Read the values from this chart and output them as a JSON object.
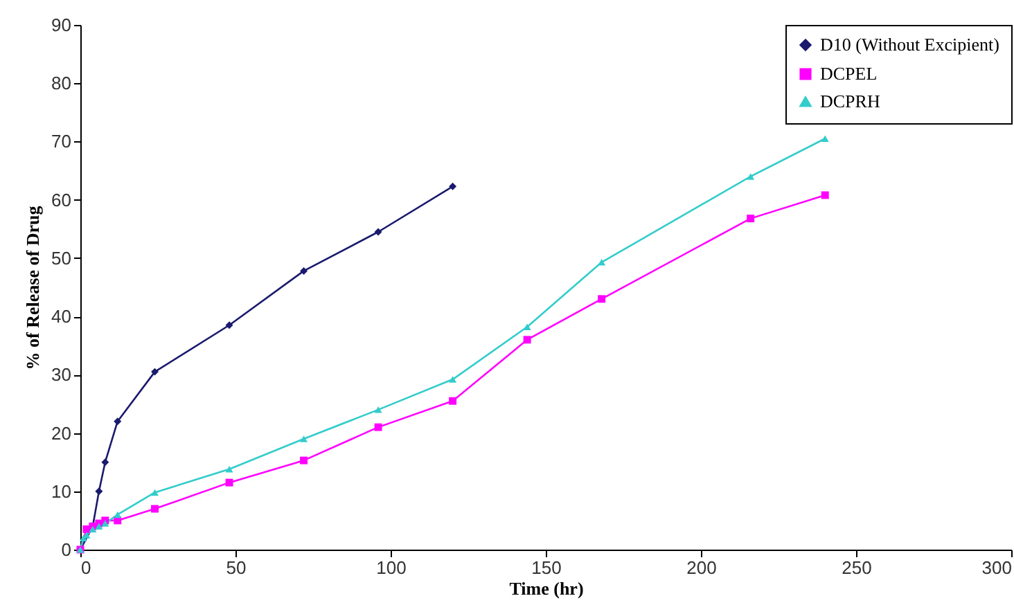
{
  "chart_data": {
    "type": "line",
    "xlabel": "Time (hr)",
    "ylabel": "% of Release of Drug",
    "xlim": [
      0,
      300
    ],
    "xticks": [
      0,
      50,
      100,
      150,
      200,
      250,
      300
    ],
    "ylim": [
      0,
      90
    ],
    "yticks": [
      0,
      10,
      20,
      30,
      40,
      50,
      60,
      70,
      80,
      90
    ],
    "grid": false,
    "legend": "top right",
    "series": [
      {
        "name": "D10 (Without Excipient)",
        "color": "#1a1a6e",
        "marker": "diamond",
        "x": [
          0,
          4,
          6,
          8,
          12,
          24,
          48,
          72,
          96,
          120
        ],
        "values": [
          0,
          4,
          10,
          15,
          22,
          30.5,
          38.5,
          47.8,
          54.5,
          62.3
        ]
      },
      {
        "name": "DCPEL",
        "color": "#ff00ff",
        "marker": "square",
        "x": [
          0,
          2,
          4,
          6,
          8,
          12,
          24,
          48,
          72,
          96,
          120,
          144,
          168,
          216,
          240
        ],
        "values": [
          0,
          3.5,
          4,
          4.5,
          5,
          5,
          7,
          11.5,
          15.3,
          21,
          25.5,
          36,
          43,
          56.8,
          60.8
        ]
      },
      {
        "name": "DCPRH",
        "color": "#33cccc",
        "marker": "triangle",
        "x": [
          0,
          1,
          2,
          4,
          6,
          8,
          12,
          24,
          48,
          72,
          96,
          120,
          144,
          168,
          216,
          240
        ],
        "values": [
          0,
          2,
          2.5,
          3.5,
          4,
          4.5,
          6,
          9.8,
          13.8,
          19,
          24,
          29.2,
          38.2,
          49.3,
          64,
          70.5
        ]
      }
    ]
  }
}
